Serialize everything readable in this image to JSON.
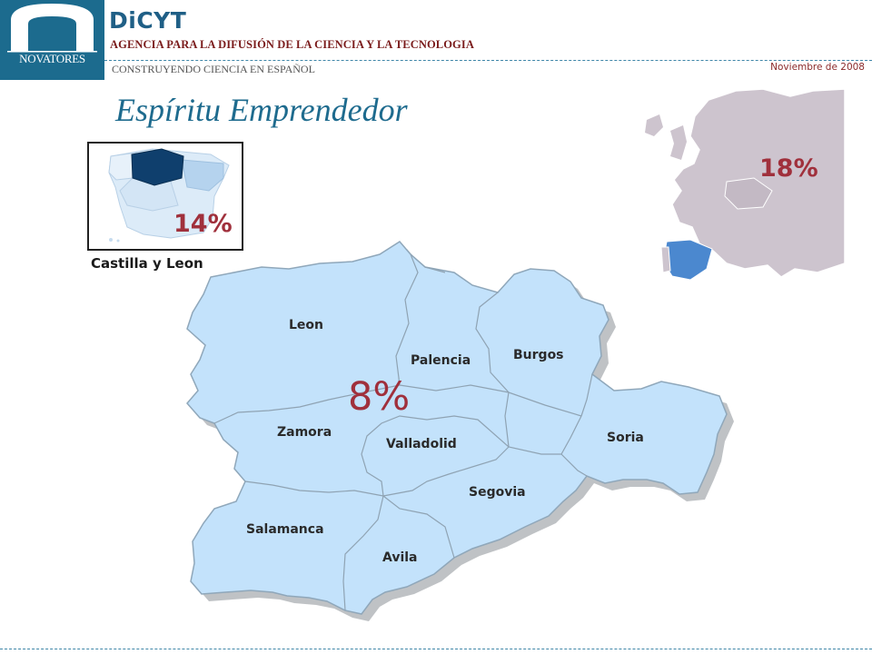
{
  "header": {
    "logo_text": "NOVATORES",
    "brand": "DiCYT",
    "agency": "AGENCIA PARA LA DIFUSIÓN DE LA CIENCIA Y LA TECNOLOGIA",
    "tagline": "CONSTRUYENDO CIENCIA EN ESPAÑOL",
    "date": "Noviembre de 2008"
  },
  "title": "Espíritu Emprendedor",
  "inset": {
    "caption": "Castilla y Leon",
    "percent": "14%"
  },
  "europe": {
    "percent": "18%"
  },
  "region": {
    "percent": "8%",
    "provinces": [
      "Leon",
      "Palencia",
      "Burgos",
      "Zamora",
      "Valladolid",
      "Soria",
      "Segovia",
      "Salamanca",
      "Avila"
    ]
  },
  "colors": {
    "brand_blue": "#1c6b8e",
    "percent_red": "#a0303c",
    "map_fill": "#c3e2fb"
  }
}
